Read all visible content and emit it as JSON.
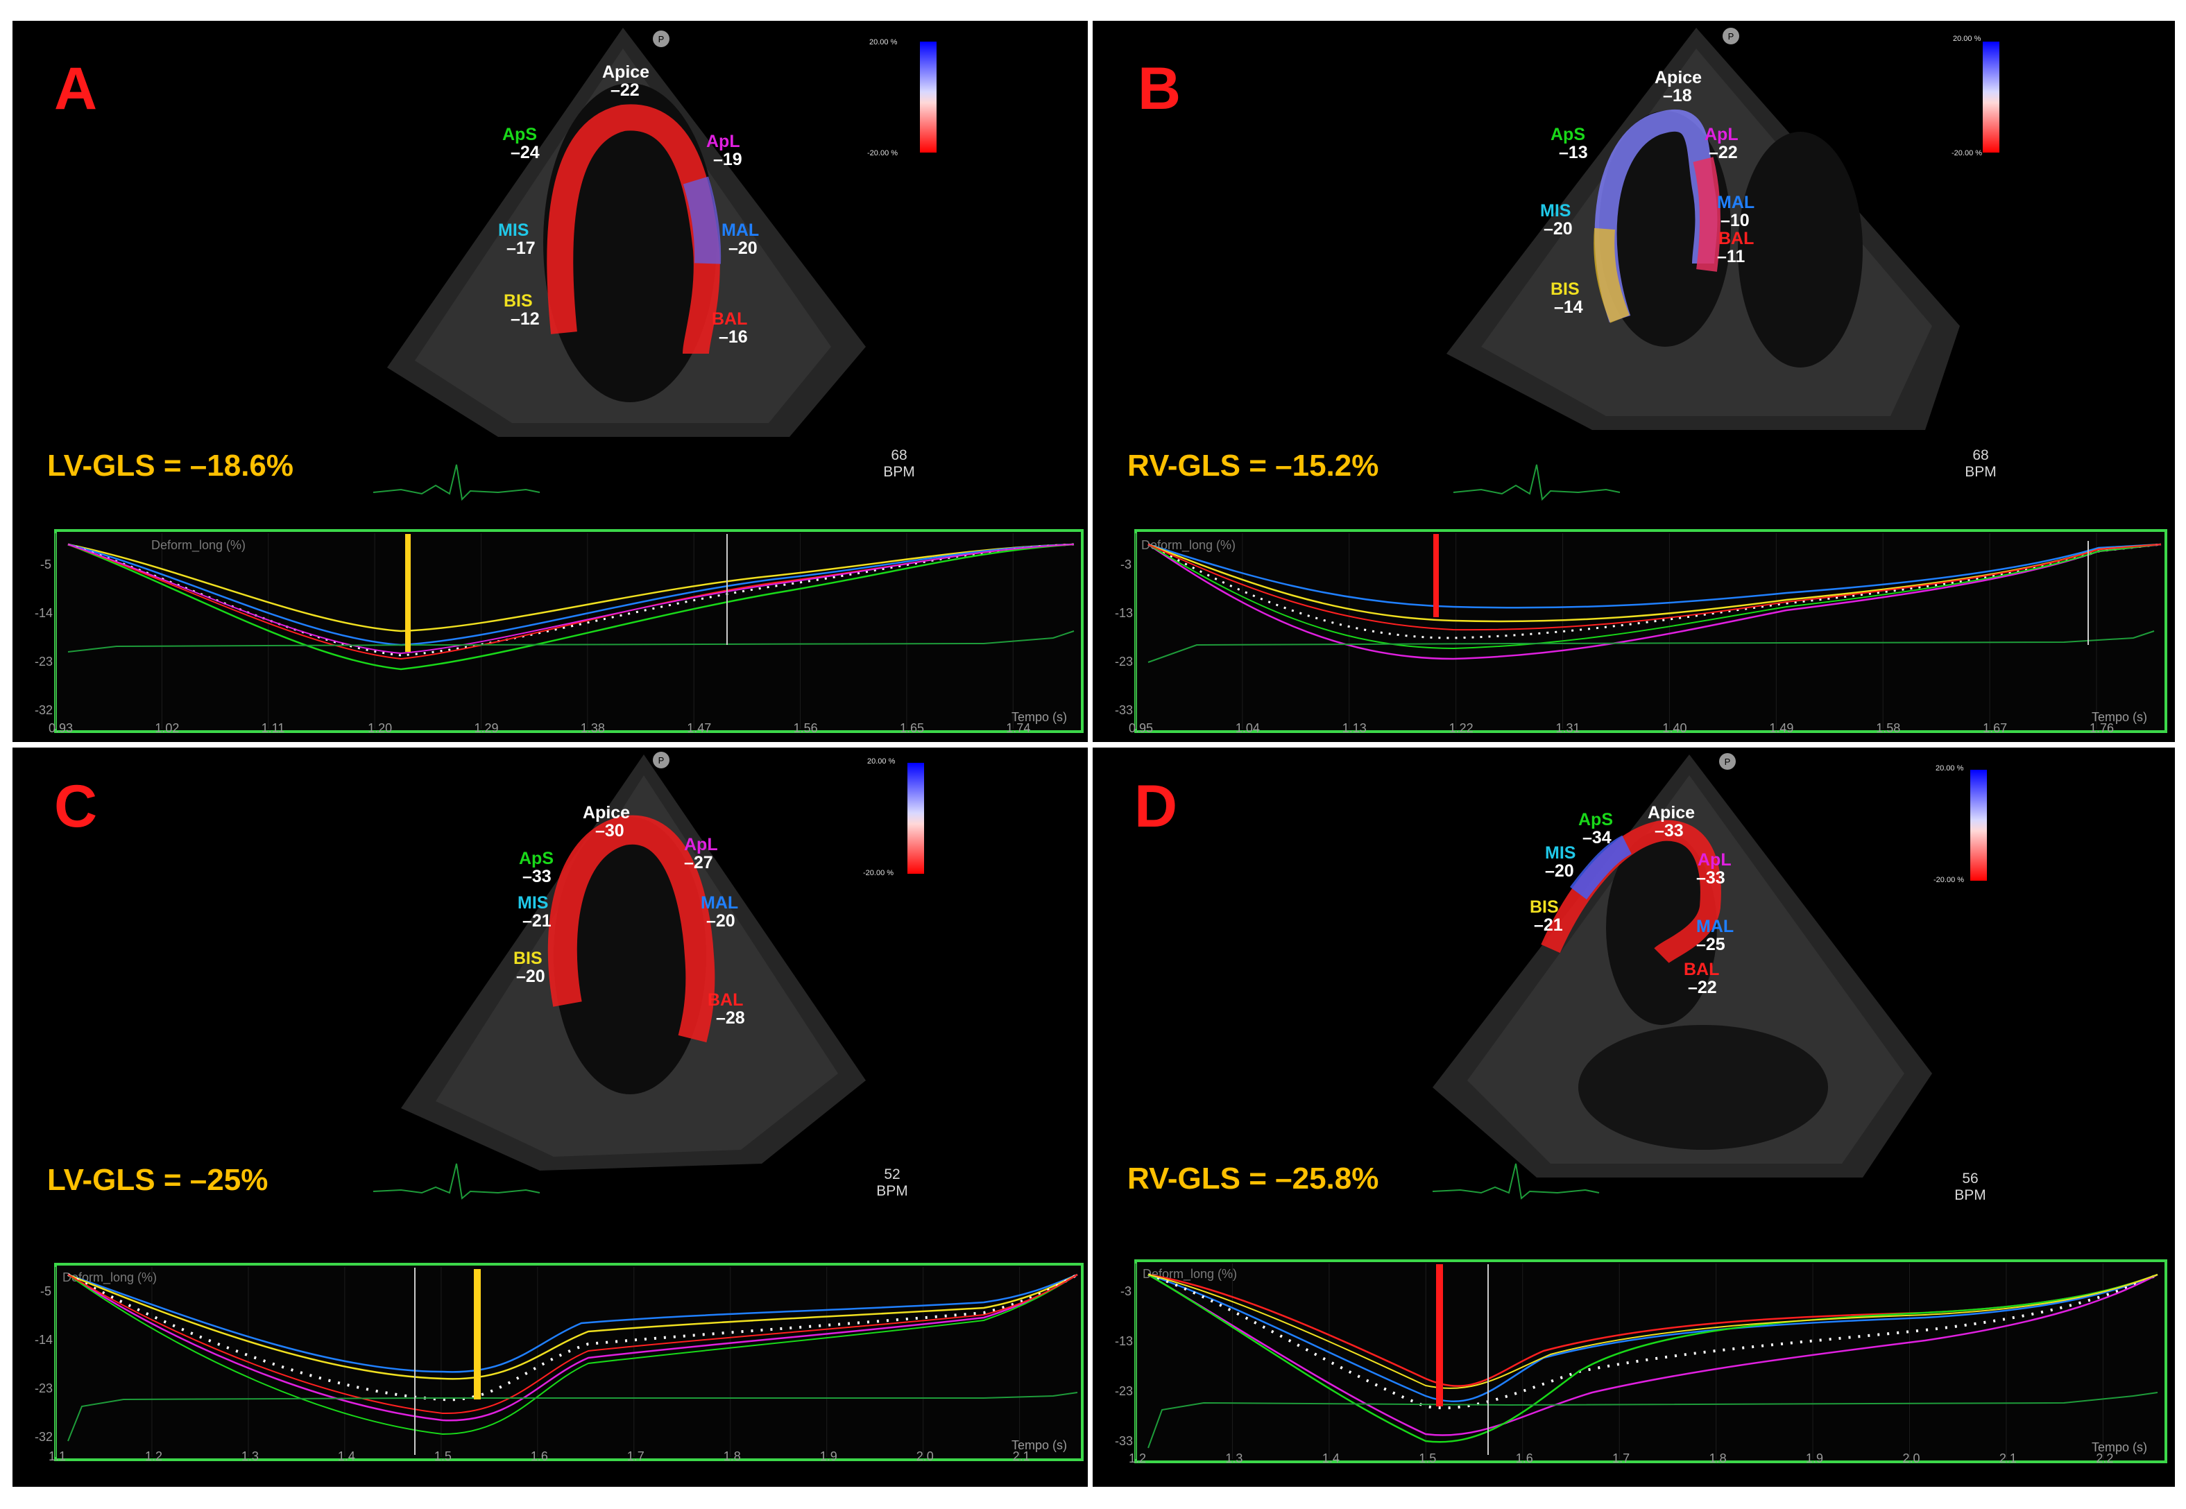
{
  "panels": [
    {
      "id": "A",
      "letter": "A",
      "gls_text": "LV-GLS = –18.6%",
      "bpm_value": "68",
      "bpm_unit": "BPM",
      "scale_top": "20.00 %",
      "scale_bottom": "-20.00 %",
      "segments": [
        {
          "name": "Apice",
          "value": "–22",
          "color": "#ffffff"
        },
        {
          "name": "ApS",
          "value": "–24",
          "color": "#19d919"
        },
        {
          "name": "ApL",
          "value": "–19",
          "color": "#e020e0"
        },
        {
          "name": "MIS",
          "value": "–17",
          "color": "#20c8e8"
        },
        {
          "name": "MAL",
          "value": "–20",
          "color": "#2080ff"
        },
        {
          "name": "BIS",
          "value": "–12",
          "color": "#f0e020"
        },
        {
          "name": "BAL",
          "value": "–16",
          "color": "#ff2020"
        }
      ],
      "graph": {
        "title": "Deform_long (%)",
        "y_ticks": [
          "-5",
          "-14",
          "-23",
          "-32"
        ],
        "x_ticks": [
          "0.93",
          "1.02",
          "1.11",
          "1.20",
          "1.29",
          "1.38",
          "1.47",
          "1.56",
          "1.65",
          "1.74"
        ],
        "x_unit": "Tempo (s)",
        "marker_color": "#ffd21a"
      }
    },
    {
      "id": "B",
      "letter": "B",
      "gls_text": "RV-GLS = –15.2%",
      "bpm_value": "68",
      "bpm_unit": "BPM",
      "scale_top": "20.00 %",
      "scale_bottom": "-20.00 %",
      "segments": [
        {
          "name": "Apice",
          "value": "–18",
          "color": "#ffffff"
        },
        {
          "name": "ApS",
          "value": "–13",
          "color": "#19d919"
        },
        {
          "name": "ApL",
          "value": "–22",
          "color": "#e020e0"
        },
        {
          "name": "MIS",
          "value": "–20",
          "color": "#20c8e8"
        },
        {
          "name": "MAL",
          "value": "–10",
          "color": "#2080ff"
        },
        {
          "name": "BAL",
          "value": "–11",
          "color": "#ff2020"
        },
        {
          "name": "BIS",
          "value": "–14",
          "color": "#f0e020"
        }
      ],
      "graph": {
        "title": "Deform_long (%)",
        "y_ticks": [
          "-3",
          "-13",
          "-23",
          "-33"
        ],
        "x_ticks": [
          "0.95",
          "1.04",
          "1.13",
          "1.22",
          "1.31",
          "1.40",
          "1.49",
          "1.58",
          "1.67",
          "1.76"
        ],
        "x_unit": "Tempo (s)",
        "marker_color": "#ff1a1a"
      }
    },
    {
      "id": "C",
      "letter": "C",
      "gls_text": "LV-GLS = –25%",
      "bpm_value": "52",
      "bpm_unit": "BPM",
      "scale_top": "20.00 %",
      "scale_bottom": "-20.00 %",
      "segments": [
        {
          "name": "Apice",
          "value": "–30",
          "color": "#ffffff"
        },
        {
          "name": "ApS",
          "value": "–33",
          "color": "#19d919"
        },
        {
          "name": "ApL",
          "value": "–27",
          "color": "#e020e0"
        },
        {
          "name": "MIS",
          "value": "–21",
          "color": "#20c8e8"
        },
        {
          "name": "MAL",
          "value": "–20",
          "color": "#2080ff"
        },
        {
          "name": "BIS",
          "value": "–20",
          "color": "#f0e020"
        },
        {
          "name": "BAL",
          "value": "–28",
          "color": "#ff2020"
        }
      ],
      "graph": {
        "title": "Deform_long (%)",
        "y_ticks": [
          "-5",
          "-14",
          "-23",
          "-32"
        ],
        "x_ticks": [
          "1.1",
          "1.2",
          "1.3",
          "1.4",
          "1.5",
          "1.6",
          "1.7",
          "1.8",
          "1.9",
          "2.0",
          "2.1"
        ],
        "x_unit": "Tempo (s)",
        "marker_color": "#ffd21a"
      }
    },
    {
      "id": "D",
      "letter": "D",
      "gls_text": "RV-GLS = –25.8%",
      "bpm_value": "56",
      "bpm_unit": "BPM",
      "scale_top": "20.00 %",
      "scale_bottom": "-20.00 %",
      "segments": [
        {
          "name": "Apice",
          "value": "–33",
          "color": "#ffffff"
        },
        {
          "name": "ApS",
          "value": "–34",
          "color": "#19d919"
        },
        {
          "name": "MIS",
          "value": "–20",
          "color": "#20c8e8"
        },
        {
          "name": "ApL",
          "value": "–33",
          "color": "#e020e0"
        },
        {
          "name": "BIS",
          "value": "–21",
          "color": "#f0e020"
        },
        {
          "name": "MAL",
          "value": "–25",
          "color": "#2080ff"
        },
        {
          "name": "BAL",
          "value": "–22",
          "color": "#ff2020"
        }
      ],
      "graph": {
        "title": "Deform_long (%)",
        "y_ticks": [
          "-3",
          "-13",
          "-23",
          "-33"
        ],
        "x_ticks": [
          "1.2",
          "1.3",
          "1.4",
          "1.5",
          "1.6",
          "1.7",
          "1.8",
          "1.9",
          "2.0",
          "2.1",
          "2.2"
        ],
        "x_unit": "Tempo (s)",
        "marker_color": "#ff1a1a"
      }
    }
  ]
}
